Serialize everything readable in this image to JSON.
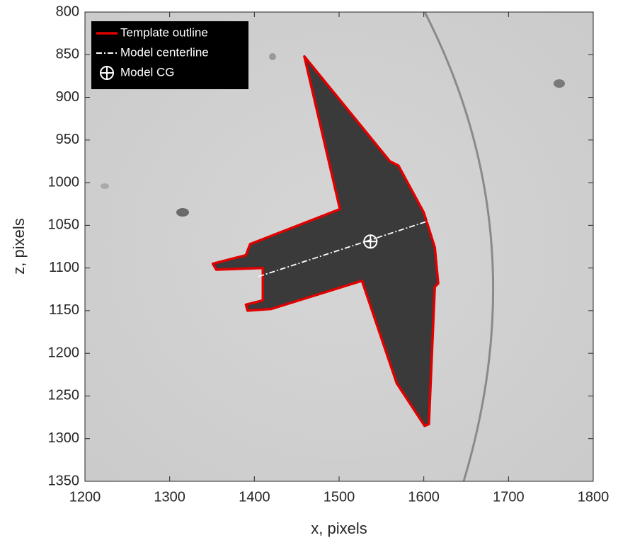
{
  "chart_data": {
    "type": "image-overlay",
    "xlabel": "x, pixels",
    "ylabel": "z, pixels",
    "xlim": [
      1200,
      1800
    ],
    "ylim": [
      800,
      1350
    ],
    "y_reverse": true,
    "xticks": [
      1200,
      1300,
      1400,
      1500,
      1600,
      1700,
      1800
    ],
    "yticks": [
      800,
      850,
      900,
      950,
      1000,
      1050,
      1100,
      1150,
      1200,
      1250,
      1300,
      1350
    ],
    "legend": "upper left",
    "series": [
      {
        "name": "Template outline",
        "color": "#e00000",
        "style": "outline",
        "x": [
          1459,
          1560,
          1570,
          1600,
          1613,
          1617,
          1613,
          1606,
          1601,
          1568,
          1527,
          1420,
          1392,
          1390,
          1410,
          1410,
          1355,
          1351,
          1390,
          1395,
          1501,
          1459
        ],
        "values": [
          852,
          975,
          980,
          1035,
          1076,
          1118,
          1122,
          1283,
          1285,
          1235,
          1115,
          1148,
          1150,
          1143,
          1138,
          1100,
          1102,
          1095,
          1085,
          1072,
          1031,
          852
        ]
      },
      {
        "name": "Model centerline",
        "color": "#ffffff",
        "style": "dashdot",
        "x": [
          1405,
          1605
        ],
        "values": [
          1110,
          1045
        ]
      },
      {
        "name": "Model CG",
        "color": "#ffffff",
        "style": "marker",
        "x": [
          1537
        ],
        "values": [
          1069
        ]
      }
    ]
  }
}
